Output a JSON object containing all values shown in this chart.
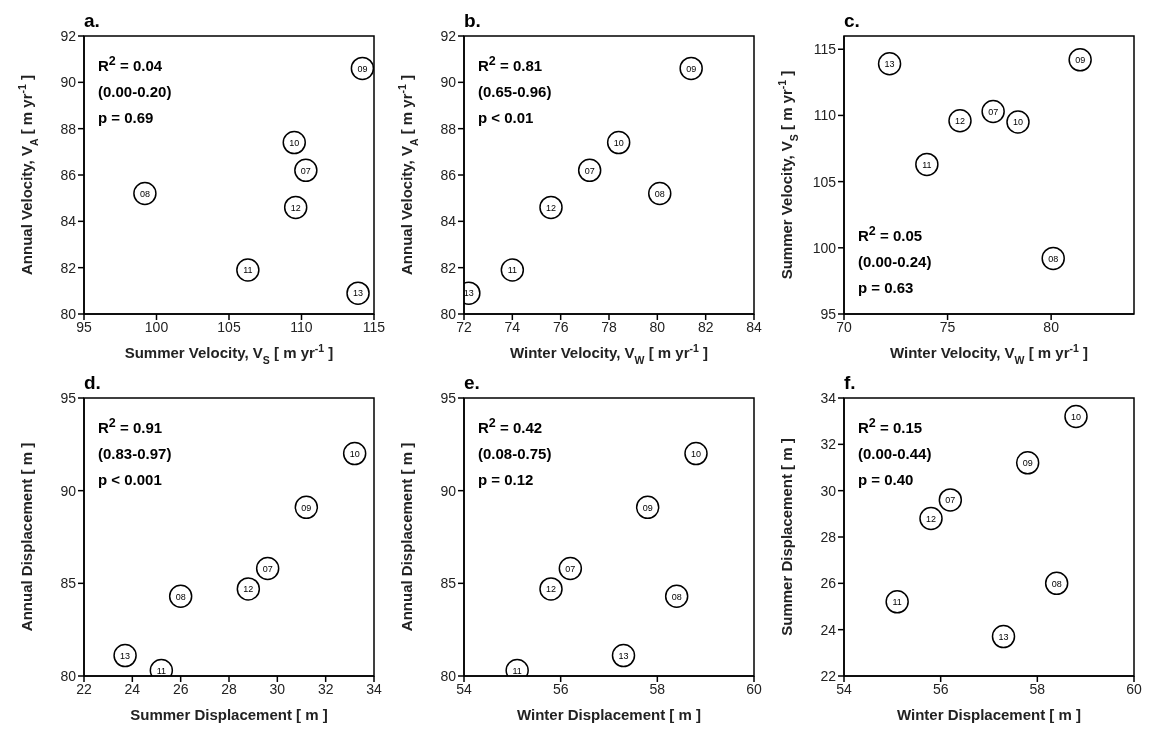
{
  "chart_data": [
    {
      "type": "scatter",
      "title": "a.",
      "xlabel": "Summer Velocity, V$_{S}$ [ m yr$^{-1}$ ]",
      "ylabel": "Annual Velocity, V$_{A}$ [ m yr$^{-1}$ ]",
      "marker": "circle",
      "series": [
        {
          "name": "07",
          "color": "#000000",
          "x": [
            110.3
          ],
          "values": [
            86.2
          ]
        },
        {
          "name": "08",
          "color": "#000000",
          "x": [
            99.2
          ],
          "values": [
            85.2
          ]
        },
        {
          "name": "09",
          "color": "#000000",
          "x": [
            114.2
          ],
          "values": [
            90.6
          ]
        },
        {
          "name": "10",
          "color": "#000000",
          "x": [
            109.5
          ],
          "values": [
            87.4
          ]
        },
        {
          "name": "11",
          "color": "#000000",
          "x": [
            106.3
          ],
          "values": [
            81.9
          ]
        },
        {
          "name": "12",
          "color": "#000000",
          "x": [
            109.6
          ],
          "values": [
            84.6
          ]
        },
        {
          "name": "13",
          "color": "#000000",
          "x": [
            113.9
          ],
          "values": [
            80.9
          ]
        }
      ],
      "xlim": [
        95,
        115
      ],
      "xticks": [
        95,
        100,
        105,
        110,
        115
      ],
      "ylim": [
        80,
        92
      ],
      "yticks": [
        80,
        82,
        84,
        86,
        88,
        90,
        92
      ],
      "annotations": [
        "R$^{2}$ = 0.04",
        "(0.00-0.20)",
        "p = 0.69"
      ]
    },
    {
      "type": "scatter",
      "title": "b.",
      "xlabel": "Winter Velocity, V$_{W}$ [ m yr$^{-1}$ ]",
      "ylabel": "Annual Velocity, V$_{A}$ [ m yr$^{-1}$ ]",
      "marker": "circle",
      "series": [
        {
          "name": "07",
          "color": "#000000",
          "x": [
            77.2
          ],
          "values": [
            86.2
          ]
        },
        {
          "name": "08",
          "color": "#000000",
          "x": [
            80.1
          ],
          "values": [
            85.2
          ]
        },
        {
          "name": "09",
          "color": "#000000",
          "x": [
            81.4
          ],
          "values": [
            90.6
          ]
        },
        {
          "name": "10",
          "color": "#000000",
          "x": [
            78.4
          ],
          "values": [
            87.4
          ]
        },
        {
          "name": "11",
          "color": "#000000",
          "x": [
            74.0
          ],
          "values": [
            81.9
          ]
        },
        {
          "name": "12",
          "color": "#000000",
          "x": [
            75.6
          ],
          "values": [
            84.6
          ]
        },
        {
          "name": "13",
          "color": "#000000",
          "x": [
            72.2
          ],
          "values": [
            80.9
          ]
        }
      ],
      "xlim": [
        72,
        84
      ],
      "xticks": [
        72,
        74,
        76,
        78,
        80,
        82,
        84
      ],
      "ylim": [
        80,
        92
      ],
      "yticks": [
        80,
        82,
        84,
        86,
        88,
        90,
        92
      ],
      "annotations": [
        "R$^{2}$ = 0.81",
        "(0.65-0.96)",
        "p < 0.01"
      ]
    },
    {
      "type": "scatter",
      "title": "c.",
      "xlabel": "Winter Velocity, V$_{W}$ [ m yr$^{-1}$ ]",
      "ylabel": "Summer Velocity, V$_{S}$ [ m yr$^{-1}$ ]",
      "marker": "circle",
      "series": [
        {
          "name": "07",
          "color": "#000000",
          "x": [
            77.2
          ],
          "values": [
            110.3
          ]
        },
        {
          "name": "08",
          "color": "#000000",
          "x": [
            80.1
          ],
          "values": [
            99.2
          ]
        },
        {
          "name": "09",
          "color": "#000000",
          "x": [
            81.4
          ],
          "values": [
            114.2
          ]
        },
        {
          "name": "10",
          "color": "#000000",
          "x": [
            78.4
          ],
          "values": [
            109.5
          ]
        },
        {
          "name": "11",
          "color": "#000000",
          "x": [
            74.0
          ],
          "values": [
            106.3
          ]
        },
        {
          "name": "12",
          "color": "#000000",
          "x": [
            75.6
          ],
          "values": [
            109.6
          ]
        },
        {
          "name": "13",
          "color": "#000000",
          "x": [
            72.2
          ],
          "values": [
            113.9
          ]
        }
      ],
      "xlim": [
        70,
        84
      ],
      "xticks": [
        70,
        75,
        80
      ],
      "ylim": [
        95,
        116
      ],
      "yticks": [
        95,
        100,
        105,
        110,
        115
      ],
      "annotations": [
        "R$^{2}$ = 0.05",
        "(0.00-0.24)",
        "p = 0.63"
      ]
    },
    {
      "type": "scatter",
      "title": "d.",
      "xlabel": "Summer Displacement [ m ]",
      "ylabel": "Annual Displacement [ m ]",
      "marker": "circle",
      "series": [
        {
          "name": "07",
          "color": "#000000",
          "x": [
            29.6
          ],
          "values": [
            85.8
          ]
        },
        {
          "name": "08",
          "color": "#000000",
          "x": [
            26.0
          ],
          "values": [
            84.3
          ]
        },
        {
          "name": "09",
          "color": "#000000",
          "x": [
            31.2
          ],
          "values": [
            89.1
          ]
        },
        {
          "name": "10",
          "color": "#000000",
          "x": [
            33.2
          ],
          "values": [
            92.0
          ]
        },
        {
          "name": "11",
          "color": "#000000",
          "x": [
            25.2
          ],
          "values": [
            80.3
          ]
        },
        {
          "name": "12",
          "color": "#000000",
          "x": [
            28.8
          ],
          "values": [
            84.7
          ]
        },
        {
          "name": "13",
          "color": "#000000",
          "x": [
            23.7
          ],
          "values": [
            81.1
          ]
        }
      ],
      "xlim": [
        22,
        34
      ],
      "xticks": [
        22,
        24,
        26,
        28,
        30,
        32,
        34
      ],
      "ylim": [
        80,
        95
      ],
      "yticks": [
        80,
        85,
        90,
        95
      ],
      "annotations": [
        "R$^{2}$ = 0.91",
        "(0.83-0.97)",
        "p < 0.001"
      ]
    },
    {
      "type": "scatter",
      "title": "e.",
      "xlabel": "Winter Displacement [ m  ]",
      "ylabel": "Annual Displacement [ m ]",
      "marker": "circle",
      "series": [
        {
          "name": "07",
          "color": "#000000",
          "x": [
            56.2
          ],
          "values": [
            85.8
          ]
        },
        {
          "name": "08",
          "color": "#000000",
          "x": [
            58.4
          ],
          "values": [
            84.3
          ]
        },
        {
          "name": "09",
          "color": "#000000",
          "x": [
            57.8
          ],
          "values": [
            89.1
          ]
        },
        {
          "name": "10",
          "color": "#000000",
          "x": [
            58.8
          ],
          "values": [
            92.0
          ]
        },
        {
          "name": "11",
          "color": "#000000",
          "x": [
            55.1
          ],
          "values": [
            80.3
          ]
        },
        {
          "name": "12",
          "color": "#000000",
          "x": [
            55.8
          ],
          "values": [
            84.7
          ]
        },
        {
          "name": "13",
          "color": "#000000",
          "x": [
            57.3
          ],
          "values": [
            81.1
          ]
        }
      ],
      "xlim": [
        54,
        60
      ],
      "xticks": [
        54,
        56,
        58,
        60
      ],
      "ylim": [
        80,
        95
      ],
      "yticks": [
        80,
        85,
        90,
        95
      ],
      "annotations": [
        "R$^{2}$ = 0.42",
        "(0.08-0.75)",
        "p = 0.12"
      ]
    },
    {
      "type": "scatter",
      "title": "f.",
      "xlabel": "Winter Displacement [ m ]",
      "ylabel": "Summer Displacement [ m ]",
      "marker": "circle",
      "series": [
        {
          "name": "07",
          "color": "#000000",
          "x": [
            56.2
          ],
          "values": [
            29.6
          ]
        },
        {
          "name": "08",
          "color": "#000000",
          "x": [
            58.4
          ],
          "values": [
            26.0
          ]
        },
        {
          "name": "09",
          "color": "#000000",
          "x": [
            57.8
          ],
          "values": [
            31.2
          ]
        },
        {
          "name": "10",
          "color": "#000000",
          "x": [
            58.8
          ],
          "values": [
            33.2
          ]
        },
        {
          "name": "11",
          "color": "#000000",
          "x": [
            55.1
          ],
          "values": [
            25.2
          ]
        },
        {
          "name": "12",
          "color": "#000000",
          "x": [
            55.8
          ],
          "values": [
            28.8
          ]
        },
        {
          "name": "13",
          "color": "#000000",
          "x": [
            57.3
          ],
          "values": [
            23.7
          ]
        }
      ],
      "xlim": [
        54,
        60
      ],
      "xticks": [
        54,
        56,
        58,
        60
      ],
      "ylim": [
        22,
        34
      ],
      "yticks": [
        22,
        24,
        26,
        28,
        30,
        32,
        34
      ],
      "annotations": [
        "R$^{2}$ = 0.15",
        "(0.00-0.44)",
        "p = 0.40"
      ]
    }
  ]
}
